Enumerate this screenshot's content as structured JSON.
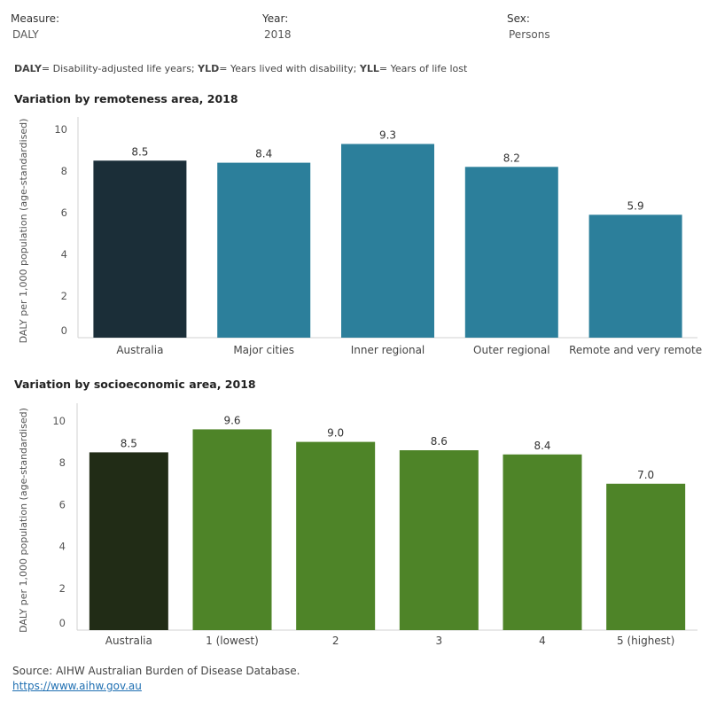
{
  "filters": [
    {
      "label": "Measure:",
      "value": "DALY"
    },
    {
      "label": "Year:",
      "value": "2018"
    },
    {
      "label": "Sex:",
      "value": "Persons"
    }
  ],
  "legend_note": [
    {
      "abbr": "DALY",
      "text": "= Disability-adjusted life years; "
    },
    {
      "abbr": "YLD",
      "text": "= Years lived with disability; "
    },
    {
      "abbr": "YLL",
      "text": "= Years of life lost"
    }
  ],
  "source": {
    "text": "Source: AIHW Australian Burden of Disease Database.",
    "link": "https://www.aihw.gov.au"
  },
  "chart_data": [
    {
      "type": "bar",
      "title": "Variation by remoteness area, 2018",
      "ylabel": "DALY per 1,000 population (age-standardised)",
      "ylim": [
        0,
        10
      ],
      "yticks": [
        0,
        2,
        4,
        6,
        8,
        10
      ],
      "grid": true,
      "categories": [
        "Australia",
        "Major cities",
        "Inner regional",
        "Outer regional",
        "Remote and very remote"
      ],
      "values": [
        8.5,
        8.4,
        9.3,
        8.2,
        5.9
      ],
      "value_labels": [
        "8.5",
        "8.4",
        "9.3",
        "8.2",
        "5.9"
      ],
      "colors": [
        "#1b2e38",
        "#2c7f9b",
        "#2c7f9b",
        "#2c7f9b",
        "#2c7f9b"
      ]
    },
    {
      "type": "bar",
      "title": "Variation by socioeconomic area, 2018",
      "ylabel": "DALY per 1,000 population (age-standardised)",
      "ylim": [
        0,
        10
      ],
      "yticks": [
        0,
        2,
        4,
        6,
        8,
        10
      ],
      "grid": true,
      "categories": [
        "Australia",
        "1 (lowest)",
        "2",
        "3",
        "4",
        "5 (highest)"
      ],
      "values": [
        8.5,
        9.6,
        9.0,
        8.6,
        8.4,
        7.0
      ],
      "value_labels": [
        "8.5",
        "9.6",
        "9.0",
        "8.6",
        "8.4",
        "7.0"
      ],
      "colors": [
        "#212c16",
        "#4e8428",
        "#4e8428",
        "#4e8428",
        "#4e8428",
        "#4e8428"
      ]
    }
  ]
}
